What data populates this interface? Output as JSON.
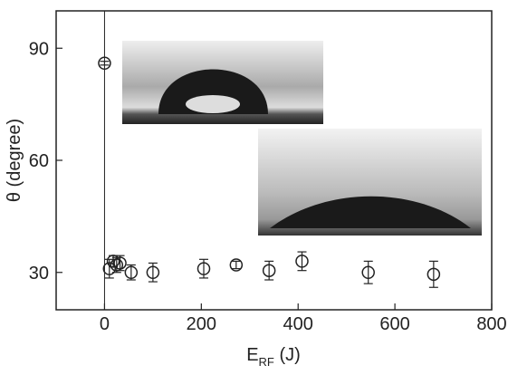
{
  "chart_data": {
    "type": "scatter",
    "x_label_parts": [
      "E",
      "RF",
      " (J)"
    ],
    "y_label": "θ (degree)",
    "xlim": [
      -100,
      800
    ],
    "xticks": [
      0,
      200,
      400,
      600,
      800
    ],
    "ylim": [
      20,
      100
    ],
    "yticks": [
      30,
      60,
      90
    ],
    "series": [
      {
        "color": "#222222",
        "x": [
          0,
          10,
          18,
          25,
          32,
          55,
          100,
          205,
          272,
          340,
          408,
          545,
          680
        ],
        "values": [
          86,
          31,
          33,
          32,
          32.5,
          30,
          30,
          31,
          32,
          30.5,
          33,
          30,
          29.5
        ],
        "errors": [
          0.5,
          2.5,
          1.5,
          2,
          2,
          2,
          2.5,
          2.5,
          1,
          2.5,
          2.5,
          3,
          3.5
        ]
      }
    ]
  }
}
